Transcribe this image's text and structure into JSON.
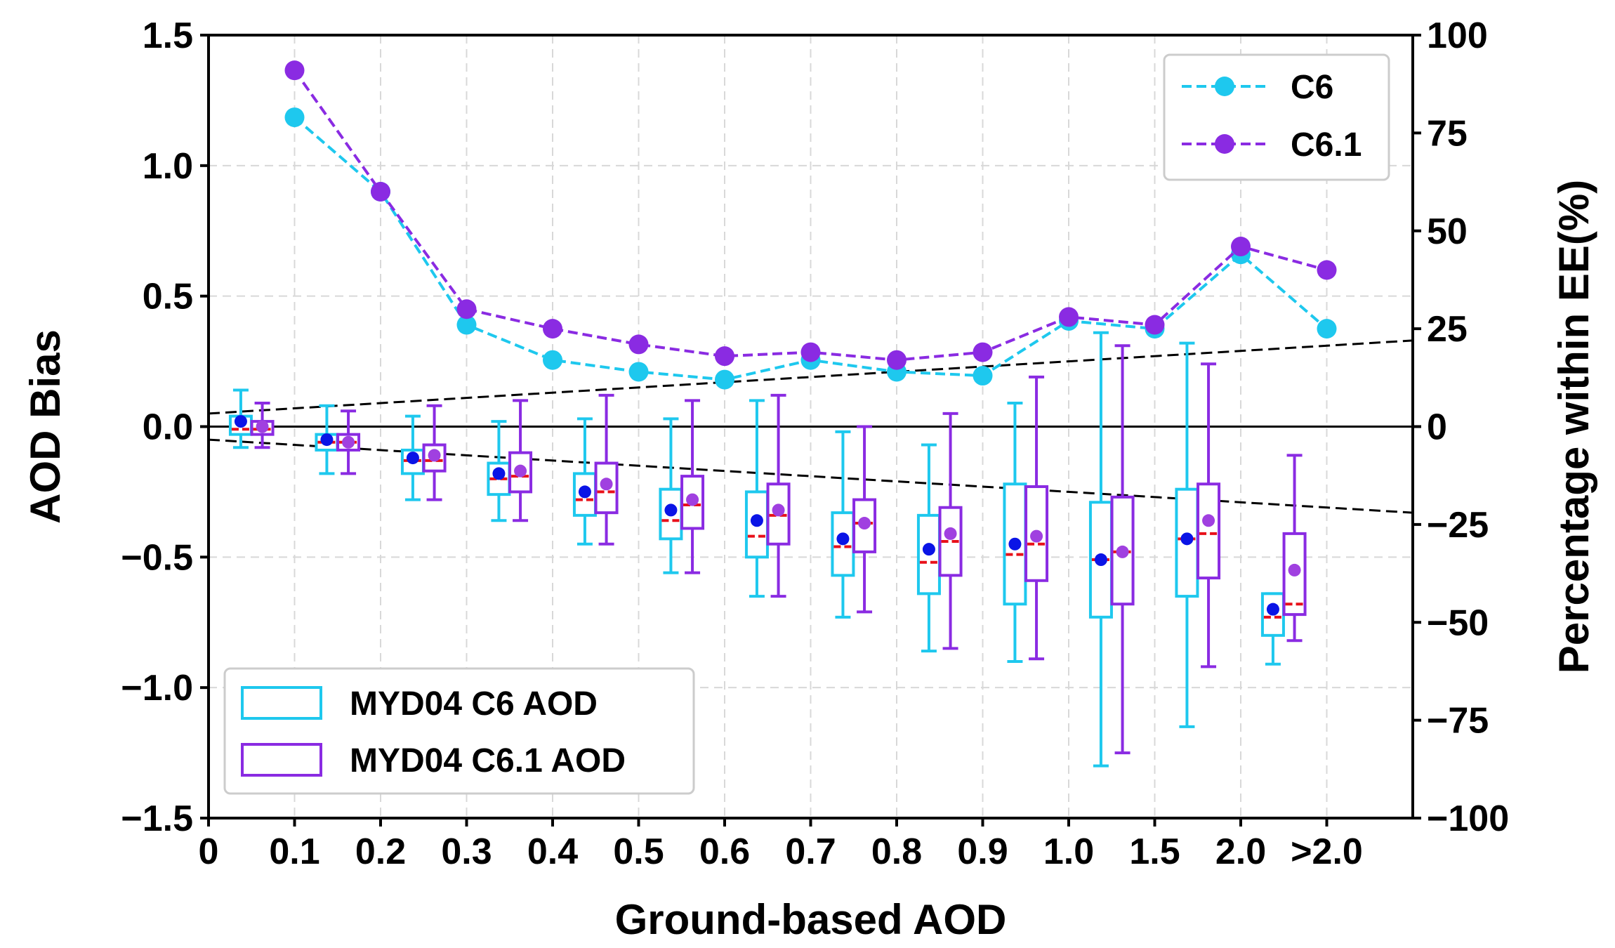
{
  "chart_data": {
    "type": "boxplot+line",
    "xlabel": "Ground-based AOD",
    "ylabel_left": "AOD Bias",
    "ylabel_right": "Percentage within EE(%)",
    "ylim_left": [
      -1.5,
      1.5
    ],
    "ylim_right": [
      -100,
      100
    ],
    "xlim": [
      0,
      14
    ],
    "x_tick_labels": [
      "0",
      "0.1",
      "0.2",
      "0.3",
      "0.4",
      "0.5",
      "0.6",
      "0.7",
      "0.8",
      "0.9",
      "1.0",
      "1.5",
      "2.0",
      ">2.0"
    ],
    "y_left_ticks": [
      -1.5,
      -1.0,
      -0.5,
      0.0,
      0.5,
      1.0,
      1.5
    ],
    "y_left_tick_labels": [
      "−1.5",
      "−1.0",
      "−0.5",
      "0.0",
      "0.5",
      "1.0",
      "1.5"
    ],
    "y_right_ticks": [
      -100,
      -75,
      -50,
      -25,
      0,
      25,
      50,
      75,
      100
    ],
    "y_right_tick_labels": [
      "−100",
      "−75",
      "−50",
      "−25",
      "0",
      "25",
      "50",
      "75",
      "100"
    ],
    "grid": true,
    "ee_envelope": {
      "intercept": 0.05,
      "slope": 0.02,
      "style": "dashed",
      "color": "#000000"
    },
    "colors": {
      "c6": "#1ec8ee",
      "c61": "#8a2be2",
      "mean_c6": "#0a14e6",
      "mean_c61": "#a040e0",
      "median": "#e8101a"
    },
    "lines": [
      {
        "name": "C6",
        "color": "#1ec8ee",
        "x": [
          1,
          2,
          3,
          4,
          5,
          6,
          7,
          8,
          9,
          10,
          11,
          12,
          13
        ],
        "y": [
          79,
          60,
          26,
          17,
          14,
          12,
          17,
          14,
          13,
          27,
          25,
          44,
          25
        ]
      },
      {
        "name": "C6.1",
        "color": "#8a2be2",
        "x": [
          1,
          2,
          3,
          4,
          5,
          6,
          7,
          8,
          9,
          10,
          11,
          12,
          13
        ],
        "y": [
          91,
          60,
          30,
          25,
          21,
          18,
          19,
          17,
          19,
          28,
          26,
          46,
          40
        ]
      }
    ],
    "legend_lines": {
      "position": "top-right",
      "entries": [
        "C6",
        "C6.1"
      ]
    },
    "legend_boxes": {
      "position": "lower-left",
      "entries": [
        "MYD04 C6 AOD",
        "MYD04 C6.1 AOD"
      ]
    },
    "boxes": [
      {
        "name": "MYD04 C6 AOD",
        "color": "#1ec8ee",
        "offset": -0.25,
        "x": [
          0.5,
          1.5,
          2.5,
          3.5,
          4.5,
          5.5,
          6.5,
          7.5,
          8.5,
          9.5,
          10.5,
          11.5,
          12.5
        ],
        "stats": [
          {
            "lo": -0.08,
            "q1": -0.03,
            "med": -0.01,
            "q3": 0.04,
            "hi": 0.14,
            "mean": 0.02
          },
          {
            "lo": -0.18,
            "q1": -0.09,
            "med": -0.06,
            "q3": -0.03,
            "hi": 0.08,
            "mean": -0.05
          },
          {
            "lo": -0.28,
            "q1": -0.18,
            "med": -0.13,
            "q3": -0.09,
            "hi": 0.04,
            "mean": -0.12
          },
          {
            "lo": -0.36,
            "q1": -0.26,
            "med": -0.2,
            "q3": -0.14,
            "hi": 0.02,
            "mean": -0.18
          },
          {
            "lo": -0.45,
            "q1": -0.34,
            "med": -0.28,
            "q3": -0.18,
            "hi": 0.03,
            "mean": -0.25
          },
          {
            "lo": -0.56,
            "q1": -0.43,
            "med": -0.36,
            "q3": -0.24,
            "hi": 0.03,
            "mean": -0.32
          },
          {
            "lo": -0.65,
            "q1": -0.5,
            "med": -0.42,
            "q3": -0.25,
            "hi": 0.1,
            "mean": -0.36
          },
          {
            "lo": -0.73,
            "q1": -0.57,
            "med": -0.46,
            "q3": -0.33,
            "hi": -0.02,
            "mean": -0.43
          },
          {
            "lo": -0.86,
            "q1": -0.64,
            "med": -0.52,
            "q3": -0.34,
            "hi": -0.07,
            "mean": -0.47
          },
          {
            "lo": -0.9,
            "q1": -0.68,
            "med": -0.49,
            "q3": -0.22,
            "hi": 0.09,
            "mean": -0.45
          },
          {
            "lo": -1.3,
            "q1": -0.73,
            "med": -0.51,
            "q3": -0.29,
            "hi": 0.36,
            "mean": -0.51
          },
          {
            "lo": -1.15,
            "q1": -0.65,
            "med": -0.43,
            "q3": -0.24,
            "hi": 0.32,
            "mean": -0.43
          },
          {
            "lo": -0.91,
            "q1": -0.8,
            "med": -0.73,
            "q3": -0.64,
            "hi": -0.64,
            "mean": -0.7
          }
        ]
      },
      {
        "name": "MYD04 C6.1 AOD",
        "color": "#8a2be2",
        "offset": 0.25,
        "x": [
          0.5,
          1.5,
          2.5,
          3.5,
          4.5,
          5.5,
          6.5,
          7.5,
          8.5,
          9.5,
          10.5,
          11.5,
          12.5
        ],
        "stats": [
          {
            "lo": -0.08,
            "q1": -0.03,
            "med": -0.01,
            "q3": 0.02,
            "hi": 0.09,
            "mean": 0.0
          },
          {
            "lo": -0.18,
            "q1": -0.09,
            "med": -0.06,
            "q3": -0.03,
            "hi": 0.06,
            "mean": -0.06
          },
          {
            "lo": -0.28,
            "q1": -0.17,
            "med": -0.13,
            "q3": -0.07,
            "hi": 0.08,
            "mean": -0.11
          },
          {
            "lo": -0.36,
            "q1": -0.25,
            "med": -0.19,
            "q3": -0.1,
            "hi": 0.1,
            "mean": -0.17
          },
          {
            "lo": -0.45,
            "q1": -0.33,
            "med": -0.25,
            "q3": -0.14,
            "hi": 0.12,
            "mean": -0.22
          },
          {
            "lo": -0.56,
            "q1": -0.39,
            "med": -0.3,
            "q3": -0.19,
            "hi": 0.1,
            "mean": -0.28
          },
          {
            "lo": -0.65,
            "q1": -0.45,
            "med": -0.34,
            "q3": -0.22,
            "hi": 0.12,
            "mean": -0.32
          },
          {
            "lo": -0.71,
            "q1": -0.48,
            "med": -0.37,
            "q3": -0.28,
            "hi": 0.0,
            "mean": -0.37
          },
          {
            "lo": -0.85,
            "q1": -0.57,
            "med": -0.44,
            "q3": -0.31,
            "hi": 0.05,
            "mean": -0.41
          },
          {
            "lo": -0.89,
            "q1": -0.59,
            "med": -0.45,
            "q3": -0.23,
            "hi": 0.19,
            "mean": -0.42
          },
          {
            "lo": -1.25,
            "q1": -0.68,
            "med": -0.48,
            "q3": -0.27,
            "hi": 0.31,
            "mean": -0.48
          },
          {
            "lo": -0.92,
            "q1": -0.58,
            "med": -0.41,
            "q3": -0.22,
            "hi": 0.24,
            "mean": -0.36
          },
          {
            "lo": -0.82,
            "q1": -0.72,
            "med": -0.68,
            "q3": -0.41,
            "hi": -0.11,
            "mean": -0.55
          }
        ]
      }
    ]
  }
}
